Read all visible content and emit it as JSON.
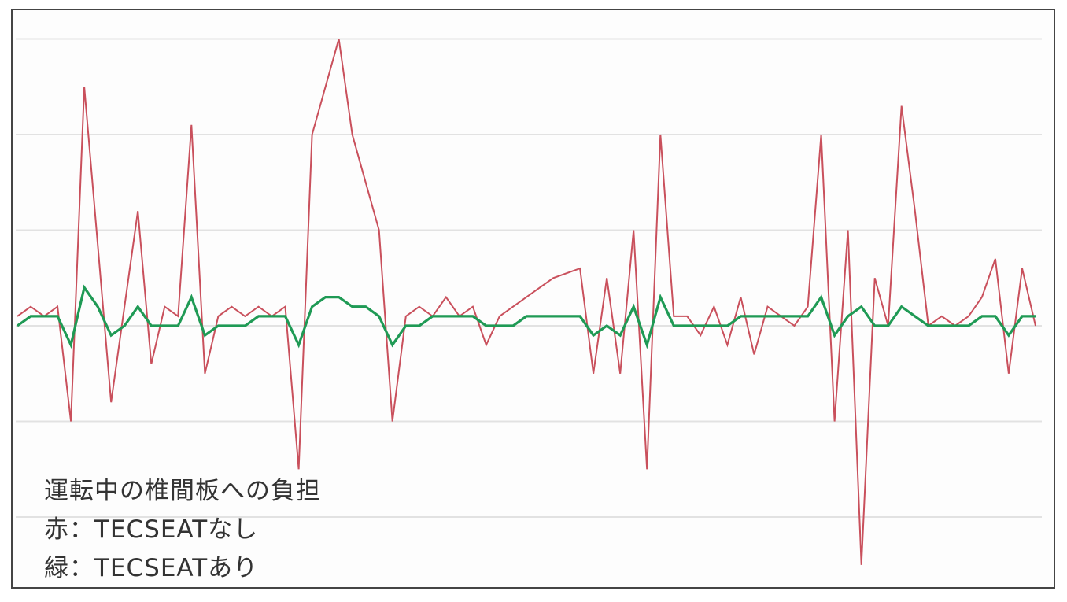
{
  "chart_data": {
    "type": "line",
    "title": "運転中の椎間板への負担",
    "legend_lines": [
      "赤：TECSEATなし",
      "緑：TECSEATあり"
    ],
    "legend_placement": "bottom-left",
    "grid": true,
    "axes_labels_shown": false,
    "ylim": [
      -2.7,
      3.05
    ],
    "gridlines": [
      -2,
      -1,
      0,
      1,
      2,
      3
    ],
    "series": [
      {
        "color": "#c9505c",
        "values": [
          0.1,
          0.2,
          0.1,
          0.2,
          -1.0,
          2.5,
          0.85,
          -0.8,
          0.2,
          1.2,
          -0.4,
          0.2,
          0.1,
          2.1,
          -0.5,
          0.1,
          0.2,
          0.1,
          0.2,
          0.1,
          0.2,
          -1.5,
          2.0,
          2.5,
          3.0,
          2.0,
          1.5,
          1.0,
          -1.0,
          0.1,
          0.2,
          0.1,
          0.3,
          0.1,
          0.2,
          -0.2,
          0.1,
          0.2,
          0.3,
          0.4,
          0.5,
          0.55,
          0.6,
          -0.5,
          0.5,
          -0.5,
          1.0,
          -1.5,
          2.0,
          0.1,
          0.1,
          -0.1,
          0.2,
          -0.2,
          0.3,
          -0.3,
          0.2,
          0.1,
          0.0,
          0.2,
          2.0,
          -1.0,
          1.0,
          -2.5,
          0.5,
          0.0,
          2.3,
          1.2,
          0.0,
          0.1,
          0.0,
          0.1,
          0.3,
          0.7,
          -0.5,
          0.6,
          0.0
        ]
      },
      {
        "color": "#1f9a55",
        "values": [
          0,
          0.1,
          0.1,
          0.1,
          -0.2,
          0.4,
          0.2,
          -0.1,
          0,
          0.2,
          0,
          0,
          0,
          0.3,
          -0.1,
          0,
          0,
          0,
          0.1,
          0.1,
          0.1,
          -0.2,
          0.2,
          0.3,
          0.3,
          0.2,
          0.2,
          0.1,
          -0.2,
          0,
          0,
          0.1,
          0.1,
          0.1,
          0.1,
          0,
          0,
          0,
          0.1,
          0.1,
          0.1,
          0.1,
          0.1,
          -0.1,
          0,
          -0.1,
          0.2,
          -0.2,
          0.3,
          0,
          0,
          0,
          0,
          0,
          0.1,
          0.1,
          0.1,
          0.1,
          0.1,
          0.1,
          0.3,
          -0.1,
          0.1,
          0.2,
          0,
          0,
          0.2,
          0.1,
          0,
          0,
          0,
          0,
          0.1,
          0.1,
          -0.1,
          0.1,
          0.1
        ]
      }
    ]
  }
}
